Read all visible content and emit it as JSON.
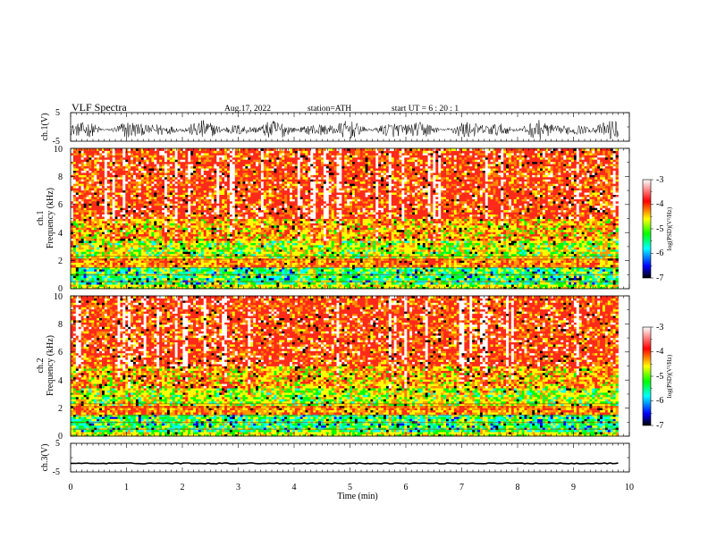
{
  "header": {
    "title": "VLF  Spectra",
    "date": "Aug.17, 2022",
    "station": "station=ATH",
    "start": "start  UT  =   6  : 20 : 1"
  },
  "chart_data": [
    {
      "type": "line",
      "panel": "ch1-waveform",
      "ylabel": "ch.1(V)",
      "ylim": [
        -5,
        5
      ],
      "yticks": [
        "5",
        "-5"
      ],
      "xlim": [
        0,
        10
      ],
      "data_xmax": 9.8,
      "description_values": {
        "amplitude_range": [
          -4.5,
          2.5
        ]
      }
    },
    {
      "type": "heatmap",
      "panel": "ch1-spectrogram",
      "ylabel_line1": "ch.1",
      "ylabel_line2": "Frequency  (kHz)",
      "ylim": [
        0,
        10
      ],
      "yticks": [
        "0",
        "2",
        "4",
        "6",
        "8",
        "10"
      ],
      "xlim": [
        0,
        10
      ],
      "data_xmax": 9.8,
      "band_edges_khz": [
        0.3,
        1.6,
        2.2,
        3.4,
        5.0,
        10
      ],
      "colorbar": {
        "label": "log(PSD)(V²/Hz)",
        "range": [
          -7,
          -3
        ],
        "ticks": [
          "-3",
          "-4",
          "-5",
          "-6",
          "-7"
        ],
        "colors": [
          "#000000",
          "#0000ff",
          "#00ffff",
          "#00ff00",
          "#ffff00",
          "#ff0000",
          "#ffffff"
        ]
      }
    },
    {
      "type": "heatmap",
      "panel": "ch2-spectrogram",
      "ylabel_line1": "ch.2",
      "ylabel_line2": "Frequency  (kHz)",
      "ylim": [
        0,
        10
      ],
      "yticks": [
        "0",
        "2",
        "4",
        "6",
        "8",
        "10"
      ],
      "xlim": [
        0,
        10
      ],
      "data_xmax": 9.8,
      "band_edges_khz": [
        0.3,
        1.6,
        2.2,
        3.4,
        5.0,
        10
      ],
      "colorbar": {
        "label": "log(PSD)(V²/Hz)",
        "range": [
          -7,
          -3
        ],
        "ticks": [
          "-3",
          "-4",
          "-5",
          "-6",
          "-7"
        ],
        "colors": [
          "#000000",
          "#0000ff",
          "#00ffff",
          "#00ff00",
          "#ffff00",
          "#ff0000",
          "#ffffff"
        ]
      }
    },
    {
      "type": "line",
      "panel": "ch3-waveform",
      "ylabel": "ch.3(V)",
      "ylim": [
        -5,
        5
      ],
      "yticks": [
        "5",
        "-5"
      ],
      "xlim": [
        0,
        10
      ],
      "data_xmax": 9.8,
      "level": -2,
      "xlabel": "Time  (min)",
      "xticks": [
        "0",
        "1",
        "2",
        "3",
        "4",
        "5",
        "6",
        "7",
        "8",
        "9",
        "10"
      ]
    }
  ]
}
